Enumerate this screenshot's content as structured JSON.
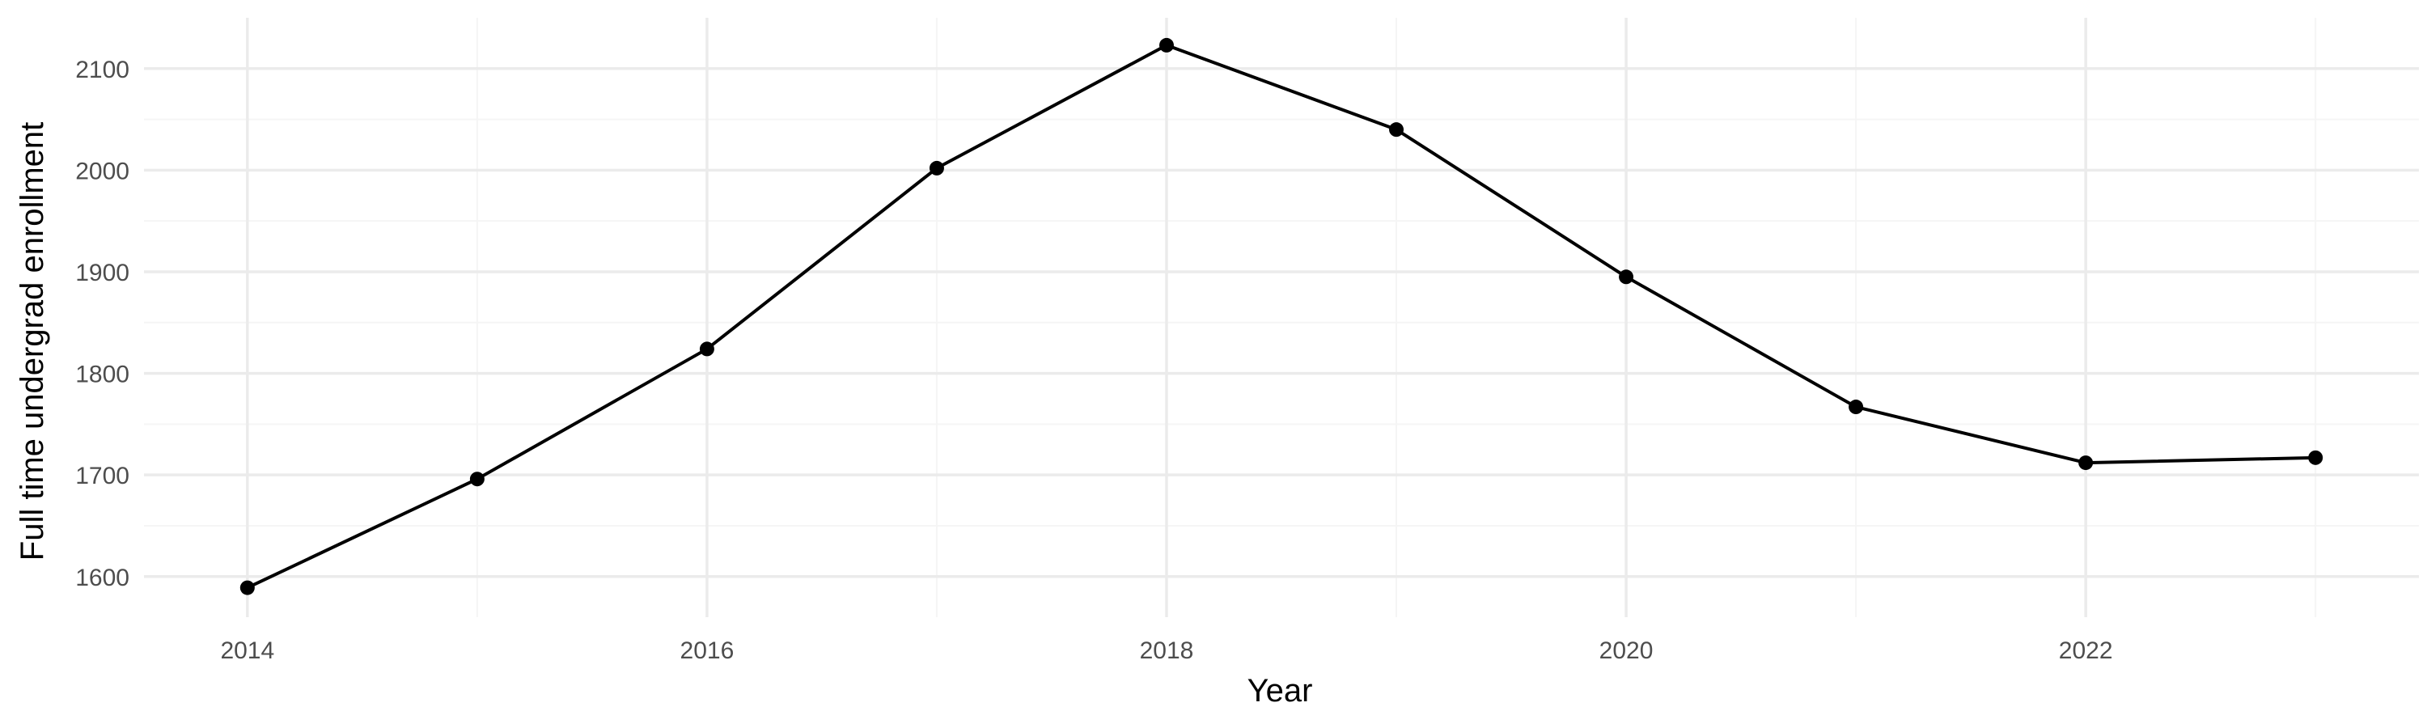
{
  "chart_data": {
    "type": "line",
    "title": "",
    "xlabel": "Year",
    "ylabel": "Full time undergrad enrollment",
    "x": [
      2014,
      2015,
      2016,
      2017,
      2018,
      2019,
      2020,
      2021,
      2022,
      2023
    ],
    "series": [
      {
        "values": [
          1589,
          1696,
          1824,
          2002,
          2123,
          2040,
          1895,
          1767,
          1712,
          1717
        ]
      }
    ],
    "xlim": [
      2013.55,
      2023.45
    ],
    "ylim": [
      1560,
      2150
    ],
    "x_major_ticks": [
      2014,
      2016,
      2018,
      2020,
      2022
    ],
    "x_tick_labels": [
      "2014",
      "2016",
      "2018",
      "2020",
      "2022"
    ],
    "x_minor_ticks": [
      2015,
      2017,
      2019,
      2021,
      2023
    ],
    "y_major_ticks": [
      1600,
      1700,
      1800,
      1900,
      2000,
      2100
    ],
    "y_tick_labels": [
      "1600",
      "1700",
      "1800",
      "1900",
      "2000",
      "2100"
    ],
    "y_minor_ticks": [
      1650,
      1750,
      1850,
      1950,
      2050
    ],
    "grid": true,
    "legend": "none",
    "colors": {
      "line": "#000000",
      "point": "#000000",
      "grid_major": "#ebebeb",
      "grid_minor": "#f5f5f5",
      "tick_text": "#4d4d4d",
      "axis_text": "#000000",
      "background": "#ffffff"
    }
  }
}
